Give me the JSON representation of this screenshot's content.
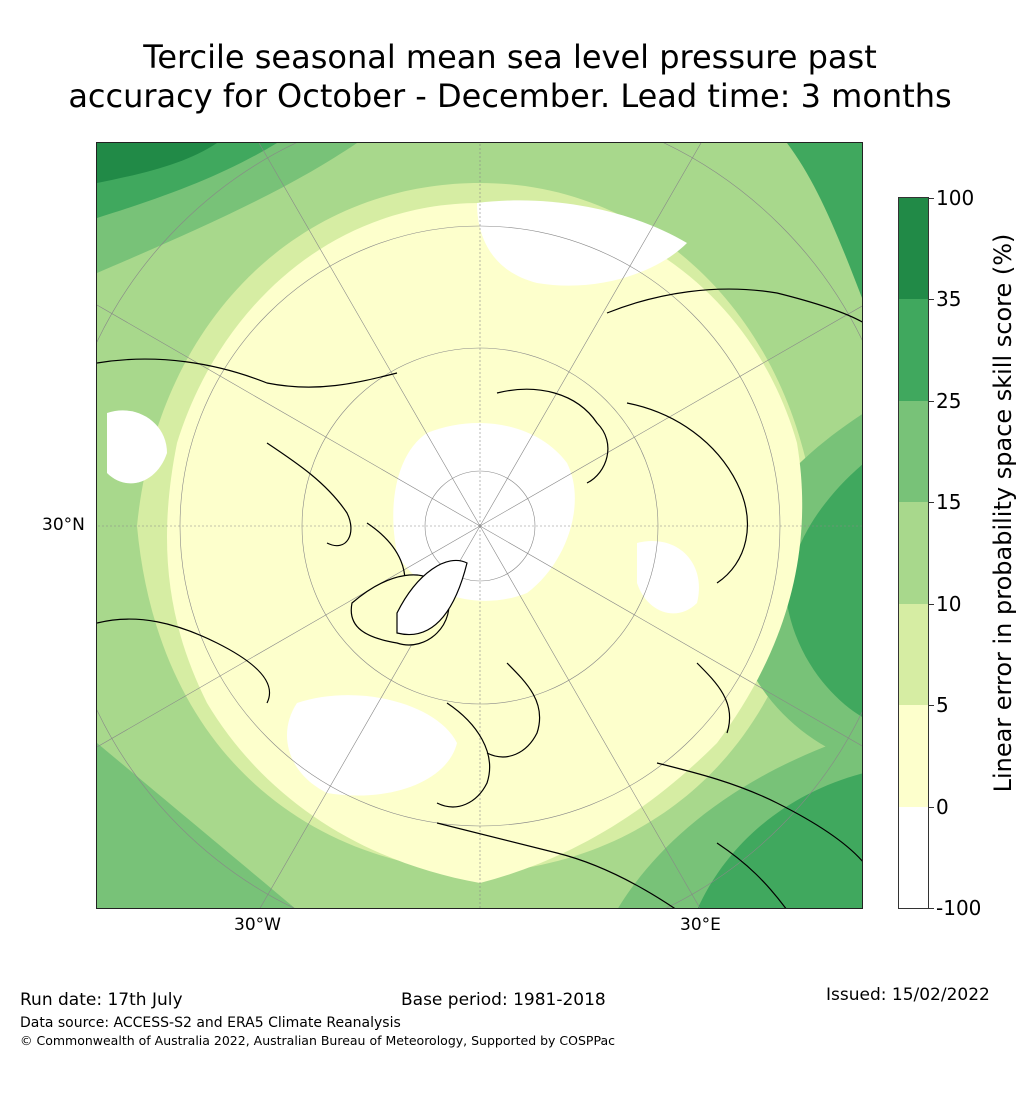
{
  "title_line1": "Tercile seasonal mean sea level pressure past",
  "title_line2": "accuracy for October - December. Lead time: 3 months",
  "map": {
    "lat_label": "30°N",
    "lon_label_west": "30°W",
    "lon_label_east": "30°E"
  },
  "colorbar": {
    "label": "Linear error in probability space skill score (%)",
    "ticks": [
      "100",
      "35",
      "25",
      "15",
      "10",
      "5",
      "0",
      "-100"
    ],
    "colors": [
      "#218a47",
      "#40a85e",
      "#78c278",
      "#a8d88c",
      "#d6eda3",
      "#fdffcc",
      "#ffffff"
    ]
  },
  "footer": {
    "run_date": "Run date: 17th July",
    "base_period": "Base period: 1981-2018",
    "issued": "Issued: 15/02/2022",
    "data_source": "Data source: ACCESS-S2 and ERA5 Climate Reanalysis",
    "copyright": "© Commonwealth of Australia 2022, Australian Bureau of Meteorology, Supported by COSPPac"
  }
}
